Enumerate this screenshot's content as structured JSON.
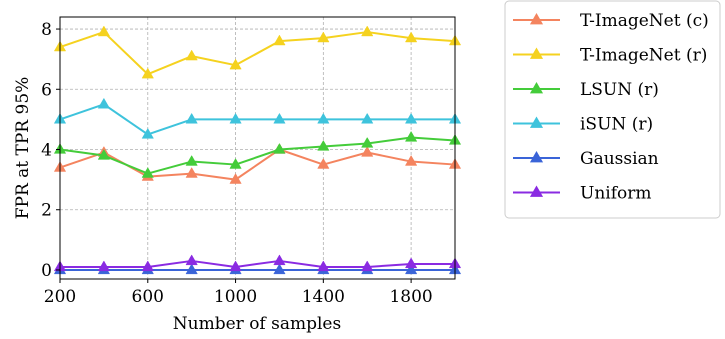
{
  "chart_data": {
    "type": "line",
    "title": "",
    "xlabel": "Number of samples",
    "ylabel": "FPR at TPR 95%",
    "x": [
      200,
      400,
      600,
      800,
      1000,
      1200,
      1400,
      1600,
      1800,
      2000
    ],
    "xlim": [
      200,
      2000
    ],
    "ylim": [
      -0.3,
      8.4
    ],
    "xticks": [
      200,
      600,
      1000,
      1400,
      1800
    ],
    "yticks": [
      0,
      2,
      4,
      6,
      8
    ],
    "grid": true,
    "legend_position": "outside-right",
    "series": [
      {
        "name": "T-ImageNet (c)",
        "color": "#f4845f",
        "values": [
          3.4,
          3.9,
          3.1,
          3.2,
          3.0,
          4.0,
          3.5,
          3.9,
          3.6,
          3.5
        ]
      },
      {
        "name": "T-ImageNet (r)",
        "color": "#f5d21f",
        "values": [
          7.4,
          7.9,
          6.5,
          7.1,
          6.8,
          7.6,
          7.7,
          7.9,
          7.7,
          7.6
        ]
      },
      {
        "name": "LSUN (r)",
        "color": "#44cc3a",
        "values": [
          4.0,
          3.8,
          3.2,
          3.6,
          3.5,
          4.0,
          4.1,
          4.2,
          4.4,
          4.3
        ]
      },
      {
        "name": "iSUN (r)",
        "color": "#3ec3dc",
        "values": [
          5.0,
          5.5,
          4.5,
          5.0,
          5.0,
          5.0,
          5.0,
          5.0,
          5.0,
          5.0
        ]
      },
      {
        "name": "Gaussian",
        "color": "#3a64d8",
        "values": [
          0.0,
          0.0,
          0.0,
          0.0,
          0.0,
          0.0,
          0.0,
          0.0,
          0.0,
          0.0
        ]
      },
      {
        "name": "Uniform",
        "color": "#8a2be2",
        "values": [
          0.1,
          0.1,
          0.1,
          0.3,
          0.1,
          0.3,
          0.1,
          0.1,
          0.2,
          0.2
        ]
      }
    ]
  }
}
